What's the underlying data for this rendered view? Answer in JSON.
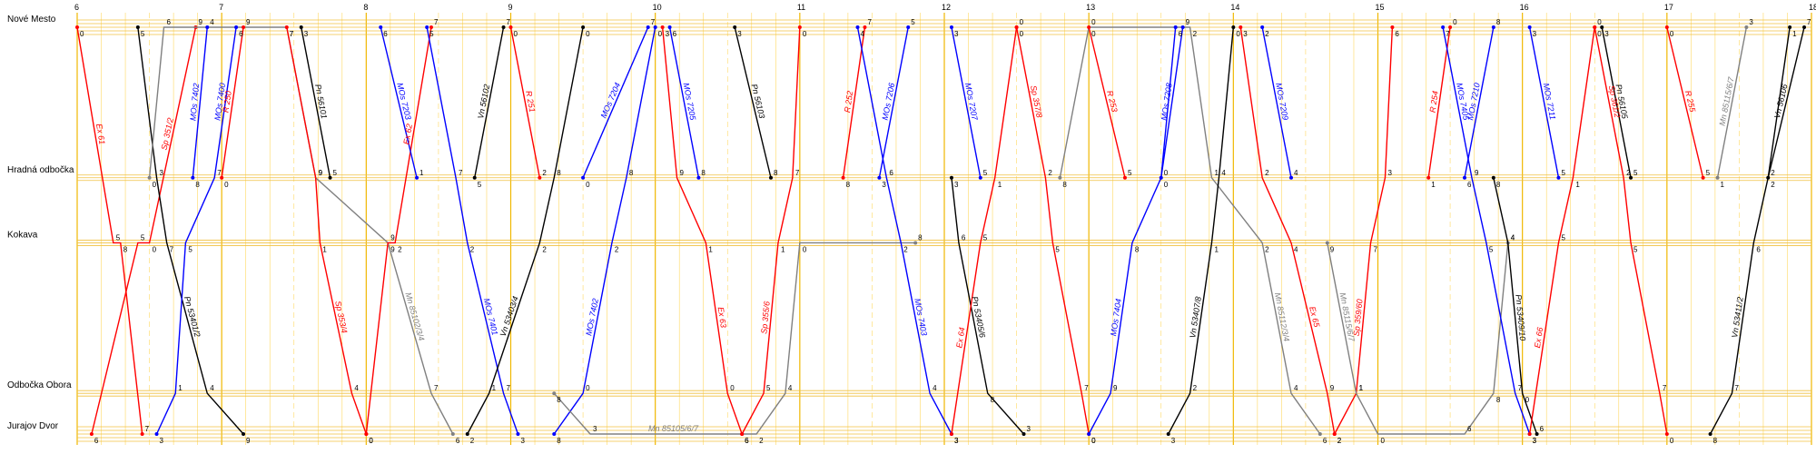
{
  "stations": [
    {
      "name": "Nové Mesto",
      "dist": 0
    },
    {
      "name": "Hradná odbočka",
      "dist": 3.7
    },
    {
      "name": "Kokava",
      "dist": 5.3
    },
    {
      "name": "Odbočka Obora",
      "dist": 9.0
    },
    {
      "name": "Jurajov Dvor",
      "dist": 10.0
    }
  ],
  "time_axis": {
    "start": 6,
    "end": 18,
    "hour_labels": [
      "6",
      "7",
      "8",
      "9",
      "10",
      "11",
      "12",
      "13",
      "14",
      "15",
      "16",
      "17",
      "18"
    ]
  },
  "colors": {
    "ex": "#ff0000",
    "mos": "#0000ff",
    "pn": "#000000",
    "mn": "#808080",
    "grid_hour": "#f0b800",
    "grid_minor": "#ffd860",
    "station_line": "#f0c040"
  },
  "trains": [
    {
      "id": "Ex 61",
      "label": "Ex 61",
      "color": "red",
      "points": [
        [
          6.0,
          0
        ],
        [
          6.25,
          5.3
        ],
        [
          6.3,
          5.3
        ],
        [
          6.45,
          10
        ]
      ]
    },
    {
      "id": "Sp 351/2",
      "label": "Sp 351/2",
      "color": "red",
      "points": [
        [
          6.1,
          10
        ],
        [
          6.42,
          5.3
        ],
        [
          6.5,
          5.3
        ],
        [
          6.82,
          0
        ]
      ]
    },
    {
      "id": "Pn 53401/2",
      "label": "Pn 53401/2",
      "color": "black",
      "points": [
        [
          6.42,
          0
        ],
        [
          6.55,
          3.7
        ],
        [
          6.62,
          5.3
        ],
        [
          6.9,
          9.0
        ],
        [
          7.15,
          10
        ]
      ]
    },
    {
      "id": "Mn 85102/3/4",
      "label": "Mn 85102/3/4",
      "color": "gray",
      "points": [
        [
          6.5,
          3.7
        ],
        [
          6.6,
          0
        ],
        [
          7.45,
          0
        ],
        [
          7.65,
          3.7
        ],
        [
          8.15,
          5.3
        ],
        [
          8.45,
          9.0
        ],
        [
          8.6,
          10
        ]
      ]
    },
    {
      "id": "MOs 7400",
      "label": "MOs 7400",
      "color": "blue",
      "points": [
        [
          6.55,
          10
        ],
        [
          6.68,
          9.0
        ],
        [
          6.75,
          5.3
        ],
        [
          6.95,
          3.7
        ],
        [
          7.1,
          0
        ]
      ]
    },
    {
      "id": "MOs 7402",
      "label": "MOs 7402",
      "color": "blue",
      "points": [
        [
          6.8,
          3.7
        ],
        [
          6.9,
          0
        ]
      ]
    },
    {
      "id": "R 250",
      "label": "R 250",
      "color": "red",
      "points": [
        [
          7.0,
          3.7
        ],
        [
          7.15,
          0
        ]
      ]
    },
    {
      "id": "Sp 353/4",
      "label": "Sp 353/4",
      "color": "red",
      "points": [
        [
          7.45,
          0
        ],
        [
          7.65,
          3.7
        ],
        [
          7.68,
          5.3
        ],
        [
          7.9,
          9.0
        ],
        [
          8.0,
          10
        ]
      ]
    },
    {
      "id": "Pn 56101",
      "label": "Pn 56101",
      "color": "black",
      "points": [
        [
          7.55,
          0
        ],
        [
          7.75,
          3.7
        ]
      ]
    },
    {
      "id": "Ex 62",
      "label": "Ex 62",
      "color": "red",
      "points": [
        [
          8.0,
          10
        ],
        [
          8.15,
          5.3
        ],
        [
          8.2,
          5.3
        ],
        [
          8.45,
          0
        ]
      ]
    },
    {
      "id": "MOs 7203",
      "label": "MOs 7203",
      "color": "blue",
      "points": [
        [
          8.1,
          0
        ],
        [
          8.35,
          3.7
        ]
      ]
    },
    {
      "id": "MOs 7401",
      "label": "MOs 7401",
      "color": "blue",
      "points": [
        [
          8.42,
          0
        ],
        [
          8.62,
          3.7
        ],
        [
          8.7,
          5.3
        ],
        [
          8.95,
          9.0
        ],
        [
          9.05,
          10
        ]
      ]
    },
    {
      "id": "Vn 56102",
      "label": "Vn 56102",
      "color": "black",
      "points": [
        [
          8.75,
          3.7
        ],
        [
          8.95,
          0
        ]
      ]
    },
    {
      "id": "Vn 53403/4",
      "label": "Vn 53403/4",
      "color": "black",
      "points": [
        [
          8.7,
          10
        ],
        [
          8.85,
          9.0
        ],
        [
          9.2,
          5.3
        ],
        [
          9.3,
          3.7
        ],
        [
          9.5,
          0
        ]
      ]
    },
    {
      "id": "R 251",
      "label": "R 251",
      "color": "red",
      "points": [
        [
          9.0,
          0
        ],
        [
          9.2,
          3.7
        ]
      ]
    },
    {
      "id": "MOs 7204",
      "label": "MOs 7204",
      "color": "blue",
      "points": [
        [
          9.5,
          3.7
        ],
        [
          9.95,
          0
        ]
      ]
    },
    {
      "id": "MOs 7402b",
      "label": "MOs 7402",
      "color": "blue",
      "points": [
        [
          9.3,
          10
        ],
        [
          9.5,
          9.0
        ],
        [
          9.7,
          5.3
        ],
        [
          9.8,
          3.7
        ],
        [
          10.0,
          0
        ]
      ]
    },
    {
      "id": "Mn 85105/6/7",
      "label": "Mn 85105/6/7",
      "color": "gray",
      "points": [
        [
          9.3,
          9.0
        ],
        [
          9.55,
          10
        ],
        [
          10.7,
          10
        ],
        [
          10.9,
          9.0
        ],
        [
          11.0,
          5.3
        ],
        [
          11.8,
          5.3
        ]
      ]
    },
    {
      "id": "Ex 63",
      "label": "Ex 63",
      "color": "red",
      "points": [
        [
          10.05,
          0
        ],
        [
          10.15,
          3.7
        ],
        [
          10.35,
          5.3
        ],
        [
          10.5,
          9.0
        ],
        [
          10.6,
          10
        ]
      ]
    },
    {
      "id": "MOs 7205",
      "label": "MOs 7205",
      "color": "blue",
      "points": [
        [
          10.1,
          0
        ],
        [
          10.3,
          3.7
        ]
      ]
    },
    {
      "id": "Pn 56103",
      "label": "Pn 56103",
      "color": "black",
      "points": [
        [
          10.55,
          0
        ],
        [
          10.8,
          3.7
        ]
      ]
    },
    {
      "id": "Sp 355/6",
      "label": "Sp 355/6",
      "color": "red",
      "points": [
        [
          10.6,
          10
        ],
        [
          10.75,
          9.0
        ],
        [
          10.85,
          5.3
        ],
        [
          10.95,
          3.7
        ],
        [
          11.0,
          0
        ]
      ]
    },
    {
      "id": "R 252",
      "label": "R 252",
      "color": "red",
      "points": [
        [
          11.3,
          3.7
        ],
        [
          11.45,
          0
        ]
      ]
    },
    {
      "id": "MOs 7403",
      "label": "MOs 7403",
      "color": "blue",
      "points": [
        [
          11.4,
          0
        ],
        [
          11.6,
          3.7
        ],
        [
          11.7,
          5.3
        ],
        [
          11.9,
          9.0
        ],
        [
          12.05,
          10
        ]
      ]
    },
    {
      "id": "MOs 7206",
      "label": "MOs 7206",
      "color": "blue",
      "points": [
        [
          11.55,
          3.7
        ],
        [
          11.75,
          0
        ]
      ]
    },
    {
      "id": "Pn 53405/6",
      "label": "Pn 53405/6",
      "color": "black",
      "points": [
        [
          12.05,
          3.7
        ],
        [
          12.1,
          5.3
        ],
        [
          12.3,
          9.0
        ],
        [
          12.55,
          10
        ]
      ]
    },
    {
      "id": "MOs 7207",
      "label": "MOs 7207",
      "color": "blue",
      "points": [
        [
          12.05,
          0
        ],
        [
          12.25,
          3.7
        ]
      ]
    },
    {
      "id": "Ex 64",
      "label": "Ex 64",
      "color": "red",
      "points": [
        [
          12.05,
          10
        ],
        [
          12.25,
          5.3
        ],
        [
          12.35,
          3.7
        ],
        [
          12.5,
          0
        ]
      ]
    },
    {
      "id": "Sp 357/8",
      "label": "Sp 357/8",
      "color": "red",
      "points": [
        [
          12.5,
          0
        ],
        [
          12.7,
          3.7
        ],
        [
          12.75,
          5.3
        ],
        [
          12.95,
          9.0
        ],
        [
          13.0,
          10
        ]
      ]
    },
    {
      "id": "Mn 85112/3/4",
      "label": "Mn 85112/3/4",
      "color": "gray",
      "points": [
        [
          12.8,
          3.7
        ],
        [
          13.0,
          0
        ],
        [
          13.7,
          0
        ],
        [
          13.85,
          3.7
        ],
        [
          14.2,
          5.3
        ],
        [
          14.4,
          9.0
        ],
        [
          14.6,
          10
        ]
      ]
    },
    {
      "id": "R 253",
      "label": "R 253",
      "color": "red",
      "points": [
        [
          13.0,
          0
        ],
        [
          13.25,
          3.7
        ]
      ]
    },
    {
      "id": "MOs 7404",
      "label": "MOs 7404",
      "color": "blue",
      "points": [
        [
          13.0,
          10
        ],
        [
          13.15,
          9.0
        ],
        [
          13.3,
          5.3
        ],
        [
          13.5,
          3.7
        ],
        [
          13.6,
          0
        ]
      ]
    },
    {
      "id": "MOs 7208",
      "label": "MOs 7208",
      "color": "blue",
      "points": [
        [
          13.5,
          3.7
        ],
        [
          13.65,
          0
        ]
      ]
    },
    {
      "id": "Vn 53407/8",
      "label": "Vn 53407/8",
      "color": "black",
      "points": [
        [
          13.55,
          10
        ],
        [
          13.7,
          9.0
        ],
        [
          13.85,
          5.3
        ],
        [
          13.9,
          3.7
        ],
        [
          14.0,
          0
        ]
      ]
    },
    {
      "id": "Ex 65",
      "label": "Ex 65",
      "color": "red",
      "points": [
        [
          14.05,
          0
        ],
        [
          14.2,
          3.7
        ],
        [
          14.4,
          5.3
        ],
        [
          14.65,
          9.0
        ],
        [
          14.7,
          10
        ]
      ]
    },
    {
      "id": "MOs 7209",
      "label": "MOs 7209",
      "color": "blue",
      "points": [
        [
          14.2,
          0
        ],
        [
          14.4,
          3.7
        ]
      ]
    },
    {
      "id": "Sp 359/60",
      "label": "Sp 359/60",
      "color": "red",
      "points": [
        [
          14.7,
          10
        ],
        [
          14.85,
          9.0
        ],
        [
          14.95,
          5.3
        ],
        [
          15.05,
          3.7
        ],
        [
          15.1,
          0
        ]
      ]
    },
    {
      "id": "Mn 85115/6/7",
      "label": "Mn 85115/6/7",
      "color": "gray",
      "points": [
        [
          14.65,
          5.3
        ],
        [
          14.85,
          9.0
        ],
        [
          15.0,
          10
        ],
        [
          15.6,
          10
        ],
        [
          15.8,
          9.0
        ],
        [
          15.9,
          5.3
        ]
      ]
    },
    {
      "id": "R 254",
      "label": "R 254",
      "color": "red",
      "points": [
        [
          15.35,
          3.7
        ],
        [
          15.5,
          0
        ]
      ]
    },
    {
      "id": "MOs 7405",
      "label": "MOs 7405",
      "color": "blue",
      "points": [
        [
          15.45,
          0
        ],
        [
          15.65,
          3.7
        ],
        [
          15.75,
          5.3
        ],
        [
          15.95,
          9.0
        ],
        [
          16.05,
          10
        ]
      ]
    },
    {
      "id": "MOs 7210",
      "label": "MOs 7210",
      "color": "blue",
      "points": [
        [
          15.6,
          3.7
        ],
        [
          15.8,
          0
        ]
      ]
    },
    {
      "id": "Pn 53409/10",
      "label": "Pn 53409/10",
      "color": "black",
      "points": [
        [
          15.8,
          3.7
        ],
        [
          15.9,
          5.3
        ],
        [
          16.0,
          9.0
        ],
        [
          16.1,
          10
        ]
      ]
    },
    {
      "id": "MOs 7211",
      "label": "MOs 7211",
      "color": "blue",
      "points": [
        [
          16.05,
          0
        ],
        [
          16.25,
          3.7
        ]
      ]
    },
    {
      "id": "Ex 66",
      "label": "Ex 66",
      "color": "red",
      "points": [
        [
          16.05,
          10
        ],
        [
          16.25,
          5.3
        ],
        [
          16.35,
          3.7
        ],
        [
          16.5,
          0
        ]
      ]
    },
    {
      "id": "Sp 361/2",
      "label": "Sp 361/2",
      "color": "red",
      "points": [
        [
          16.5,
          0
        ],
        [
          16.7,
          3.7
        ],
        [
          16.75,
          5.3
        ],
        [
          16.95,
          9.0
        ],
        [
          17.0,
          10
        ]
      ]
    },
    {
      "id": "Pn 56105",
      "label": "Pn 56105",
      "color": "black",
      "points": [
        [
          16.55,
          0
        ],
        [
          16.75,
          3.7
        ]
      ]
    },
    {
      "id": "R 255",
      "label": "R 255",
      "color": "red",
      "points": [
        [
          17.0,
          0
        ],
        [
          17.25,
          3.7
        ]
      ]
    },
    {
      "id": "Mn 85115/6/7b",
      "label": "Mn 85115/6/7",
      "color": "gray",
      "points": [
        [
          17.35,
          3.7
        ],
        [
          17.55,
          0
        ]
      ]
    },
    {
      "id": "Vn 53411/2",
      "label": "Vn 53411/2",
      "color": "black",
      "points": [
        [
          17.3,
          10
        ],
        [
          17.45,
          9.0
        ],
        [
          17.6,
          5.3
        ],
        [
          17.7,
          3.7
        ],
        [
          17.85,
          0
        ]
      ]
    },
    {
      "id": "Vn 56106",
      "label": "Vn 56106",
      "color": "black",
      "points": [
        [
          17.7,
          3.7
        ],
        [
          17.95,
          0
        ]
      ]
    }
  ]
}
